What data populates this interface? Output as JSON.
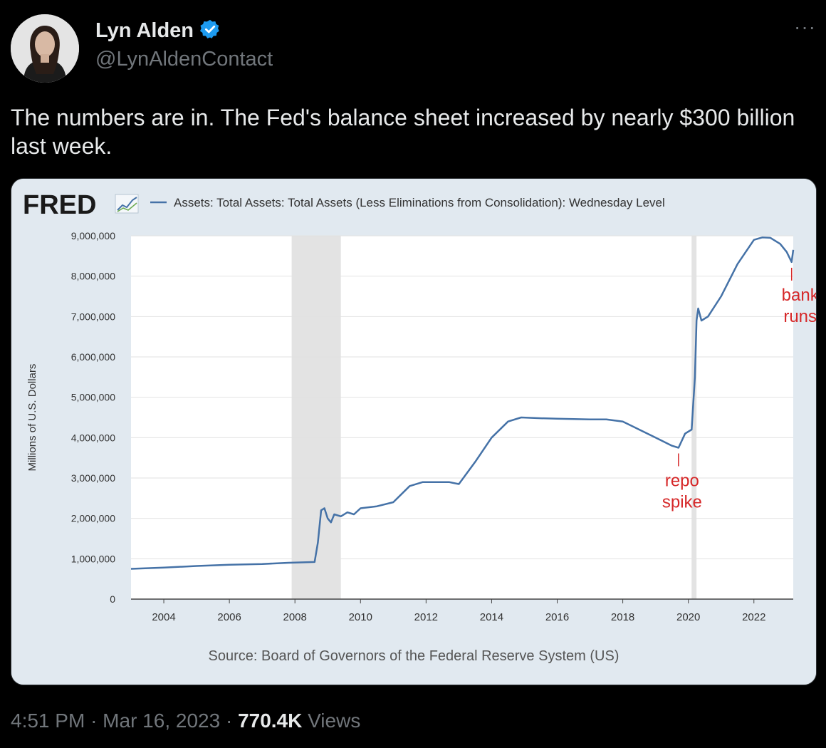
{
  "tweet": {
    "author_name": "Lyn Alden",
    "handle": "@LynAldenContact",
    "verified": true,
    "text": "The numbers are in. The Fed's balance sheet increased by nearly $300 billion last week.",
    "time": "4:51 PM",
    "separator": "·",
    "date": "Mar 16, 2023",
    "views_count": "770.4K",
    "views_label": "Views",
    "more_icon": "more-horizontal-icon"
  },
  "colors": {
    "verified_badge": "#1d9bf0",
    "line": "#4572a7",
    "annotation": "#d62728",
    "chart_bg": "#e1e9f0",
    "recession": "#e3e3e3"
  },
  "chart": {
    "logo_text": "FRED",
    "legend_label": "Assets: Total Assets: Total Assets (Less Eliminations from Consolidation): Wednesday Level",
    "source_text": "Source: Board of Governors of the Federal Reserve System (US)"
  },
  "chart_data": {
    "type": "line",
    "ylabel": "Millions of U.S. Dollars",
    "ylim": [
      0,
      9000000
    ],
    "xlim": [
      2003.0,
      2023.2
    ],
    "yticks": [
      "0",
      "1,000,000",
      "2,000,000",
      "3,000,000",
      "4,000,000",
      "5,000,000",
      "6,000,000",
      "7,000,000",
      "8,000,000",
      "9,000,000"
    ],
    "xticks": [
      "2004",
      "2006",
      "2008",
      "2010",
      "2012",
      "2014",
      "2016",
      "2018",
      "2020",
      "2022"
    ],
    "recessions": [
      [
        2007.9,
        2009.4
      ],
      [
        2020.1,
        2020.25
      ]
    ],
    "grid": true,
    "series": [
      {
        "x": [
          2003.0,
          2004.0,
          2005.0,
          2006.0,
          2007.0,
          2007.8,
          2008.6,
          2008.7,
          2008.8,
          2008.9,
          2009.0,
          2009.1,
          2009.2,
          2009.4,
          2009.6,
          2009.8,
          2010.0,
          2010.5,
          2011.0,
          2011.5,
          2011.9,
          2012.3,
          2012.7,
          2013.0,
          2013.5,
          2014.0,
          2014.5,
          2014.9,
          2015.5,
          2016.0,
          2016.5,
          2017.0,
          2017.5,
          2018.0,
          2018.5,
          2019.0,
          2019.5,
          2019.7,
          2019.9,
          2020.1,
          2020.2,
          2020.25,
          2020.3,
          2020.4,
          2020.6,
          2021.0,
          2021.5,
          2022.0,
          2022.25,
          2022.5,
          2022.8,
          2023.0,
          2023.15,
          2023.2
        ],
        "y": [
          750000,
          780000,
          820000,
          850000,
          870000,
          900000,
          920000,
          1400000,
          2200000,
          2250000,
          2000000,
          1900000,
          2100000,
          2050000,
          2150000,
          2100000,
          2250000,
          2300000,
          2400000,
          2800000,
          2900000,
          2900000,
          2900000,
          2850000,
          3400000,
          4000000,
          4400000,
          4500000,
          4480000,
          4470000,
          4460000,
          4450000,
          4450000,
          4400000,
          4200000,
          4000000,
          3800000,
          3750000,
          4100000,
          4200000,
          5500000,
          6900000,
          7200000,
          6900000,
          7000000,
          7500000,
          8300000,
          8900000,
          8960000,
          8950000,
          8800000,
          8600000,
          8350000,
          8650000
        ]
      }
    ],
    "annotations": [
      {
        "text_line1": "repo",
        "text_line2": "spike",
        "x": 2019.7,
        "y": 3750000
      },
      {
        "text_line1": "bank",
        "text_line2": "runs",
        "x": 2023.15,
        "y": 8350000
      }
    ]
  }
}
